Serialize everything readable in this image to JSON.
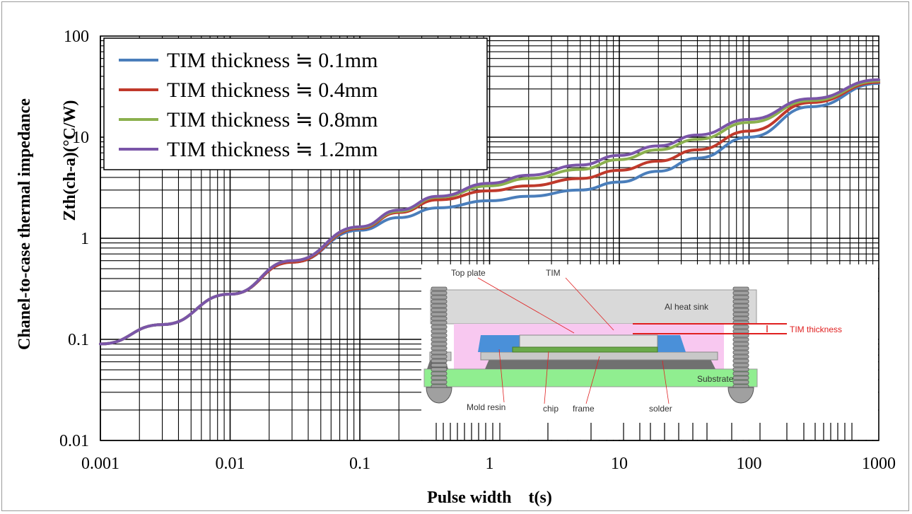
{
  "chart_data": {
    "type": "line",
    "title": "",
    "xlabel": "Pulse width　t(s)",
    "ylabel_line1": "Chanel-to-case thermal impedance",
    "ylabel_line2": "Zth(ch-a)(°C/W)",
    "x_scale": "log",
    "y_scale": "log",
    "xlim": [
      0.001,
      1000
    ],
    "ylim": [
      0.01,
      100
    ],
    "x_ticks": [
      "0.001",
      "0.01",
      "0.1",
      "1",
      "10",
      "100",
      "1000"
    ],
    "y_ticks": [
      "0.01",
      "0.1",
      "1",
      "10",
      "100"
    ],
    "grid": true,
    "legend_position": "top-left",
    "series": [
      {
        "name": "TIM thickness ≒ 0.1mm",
        "color": "#4a7ebb",
        "x": [
          0.001,
          0.003,
          0.01,
          0.03,
          0.1,
          0.2,
          0.4,
          1,
          2,
          5,
          10,
          20,
          40,
          100,
          300,
          1000
        ],
        "y": [
          0.09,
          0.14,
          0.28,
          0.58,
          1.2,
          1.6,
          2.0,
          2.35,
          2.6,
          3.0,
          3.6,
          4.6,
          6.2,
          10,
          20,
          34
        ]
      },
      {
        "name": "TIM thickness ≒ 0.4mm",
        "color": "#c0392b",
        "x": [
          0.001,
          0.003,
          0.01,
          0.03,
          0.1,
          0.2,
          0.4,
          1,
          2,
          5,
          10,
          20,
          40,
          100,
          300,
          1000
        ],
        "y": [
          0.09,
          0.14,
          0.28,
          0.58,
          1.25,
          1.8,
          2.4,
          2.95,
          3.3,
          3.9,
          4.7,
          5.8,
          7.5,
          11.5,
          22,
          35
        ]
      },
      {
        "name": "TIM thickness ≒ 0.8mm",
        "color": "#8bb04e",
        "x": [
          0.001,
          0.003,
          0.01,
          0.03,
          0.1,
          0.2,
          0.4,
          1,
          2,
          5,
          10,
          20,
          40,
          100,
          300,
          1000
        ],
        "y": [
          0.09,
          0.14,
          0.28,
          0.6,
          1.28,
          1.85,
          2.55,
          3.3,
          3.9,
          4.8,
          6.0,
          7.5,
          9.5,
          14,
          23,
          36
        ]
      },
      {
        "name": "TIM thickness ≒ 1.2mm",
        "color": "#7a55a8",
        "x": [
          0.001,
          0.003,
          0.01,
          0.03,
          0.1,
          0.2,
          0.4,
          1,
          2,
          5,
          10,
          20,
          40,
          100,
          300,
          1000
        ],
        "y": [
          0.09,
          0.14,
          0.28,
          0.6,
          1.3,
          1.9,
          2.6,
          3.5,
          4.2,
          5.3,
          6.6,
          8.2,
          10.5,
          15,
          24,
          37
        ]
      }
    ]
  },
  "inset": {
    "labels": {
      "top_plate": "Top plate",
      "tim": "TIM",
      "heat_sink": "Al  heat sink",
      "tim_thickness": "TIM thickness",
      "substrate": "Substrate",
      "mold_resin": "Mold resin",
      "chip": "chip",
      "frame": "frame",
      "solder": "solder"
    },
    "colors": {
      "heat_sink": "#d9d9d9",
      "tim": "#f8c8f0",
      "substrate": "#90ee90",
      "mold_resin": "#4a90d9",
      "chip": "#6aaa4a",
      "frame": "#c8c8c8",
      "solder": "#707070",
      "screw": "#a0a0a0",
      "annotation": "#e02020"
    }
  }
}
